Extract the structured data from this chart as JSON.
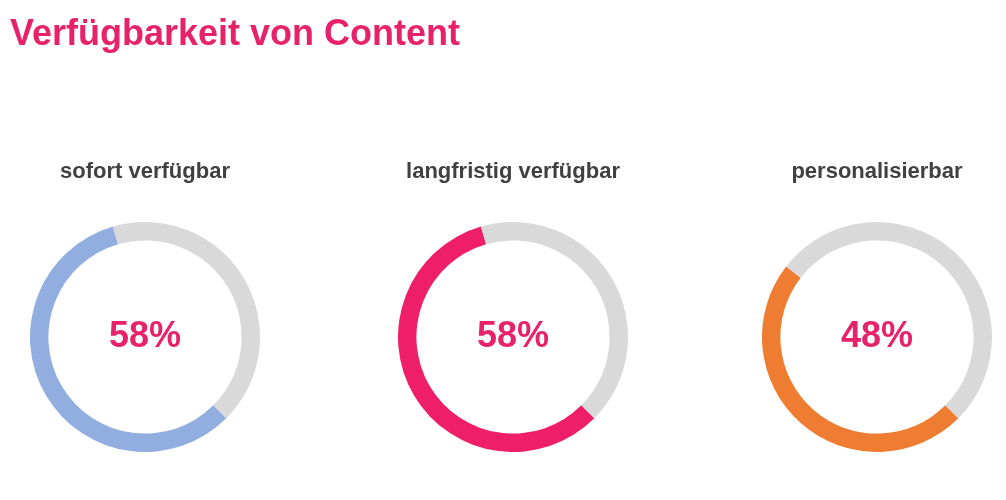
{
  "chart_data": [
    {
      "type": "other",
      "title": "Verfügbarkeit von Content"
    },
    {
      "type": "donut",
      "title": "sofort verfügbar",
      "categories": [
        null,
        null
      ],
      "values": [
        58,
        42
      ],
      "colors": [
        "#92aee0",
        "#d9d9d9"
      ],
      "annotations": [
        "58%"
      ]
    },
    {
      "type": "donut",
      "title": "langfristig verfügbar",
      "categories": [
        null,
        null
      ],
      "values": [
        58,
        42
      ],
      "colors": [
        "#ee1f68",
        "#d9d9d9"
      ],
      "annotations": [
        "58%"
      ]
    },
    {
      "type": "donut",
      "title": "personalisierbar",
      "categories": [
        null,
        null
      ],
      "values": [
        48,
        52
      ],
      "colors": [
        "#ee7d31",
        "#d9d9d9"
      ],
      "annotations": [
        "48%"
      ]
    }
  ]
}
